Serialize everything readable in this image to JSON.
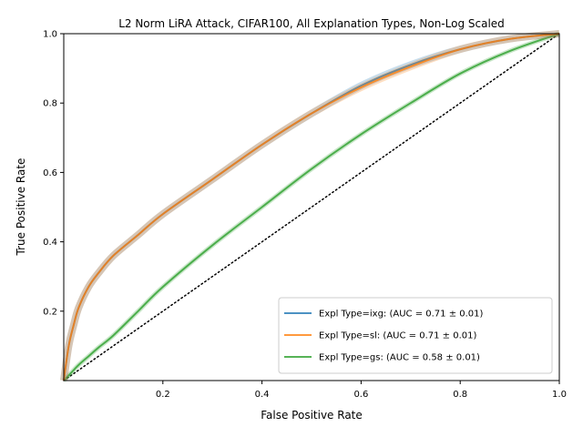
{
  "chart_data": {
    "type": "line",
    "title": "L2 Norm LiRA Attack, CIFAR100, All Explanation Types, Non-Log Scaled",
    "xlabel": "False Positive Rate",
    "ylabel": "True Positive Rate",
    "xlim": [
      0,
      1
    ],
    "ylim": [
      0,
      1
    ],
    "x_ticks": [
      0.2,
      0.4,
      0.6,
      0.8,
      1.0
    ],
    "x_tick_labels": [
      "0.2",
      "0.4",
      "0.6",
      "0.8",
      "1.0"
    ],
    "y_ticks": [
      0.2,
      0.4,
      0.6,
      0.8,
      1.0
    ],
    "y_tick_labels": [
      "0.2",
      "0.4",
      "0.6",
      "0.8",
      "1.0"
    ],
    "grid": false,
    "legend_position": "bottom-right",
    "x": [
      0,
      0.01,
      0.02,
      0.03,
      0.05,
      0.07,
      0.1,
      0.15,
      0.2,
      0.3,
      0.4,
      0.5,
      0.6,
      0.7,
      0.8,
      0.9,
      1.0
    ],
    "series": [
      {
        "name": "Expl Type=ixg: (AUC = 0.71 ± 0.01)",
        "color": "#1f77b4",
        "values": [
          0,
          0.1,
          0.16,
          0.21,
          0.27,
          0.31,
          0.36,
          0.42,
          0.48,
          0.58,
          0.68,
          0.77,
          0.85,
          0.91,
          0.955,
          0.985,
          1.0
        ]
      },
      {
        "name": "Expl Type=sl: (AUC = 0.71 ± 0.01)",
        "color": "#ff7f0e",
        "values": [
          0,
          0.1,
          0.16,
          0.21,
          0.27,
          0.31,
          0.36,
          0.42,
          0.48,
          0.58,
          0.68,
          0.77,
          0.845,
          0.905,
          0.955,
          0.985,
          1.0
        ]
      },
      {
        "name": "Expl Type=gs: (AUC = 0.58 ± 0.01)",
        "color": "#2ca02c",
        "values": [
          0,
          0.015,
          0.03,
          0.045,
          0.07,
          0.095,
          0.13,
          0.2,
          0.27,
          0.39,
          0.5,
          0.61,
          0.71,
          0.8,
          0.885,
          0.95,
          1.0
        ]
      }
    ],
    "reference_line": {
      "x": [
        0,
        1
      ],
      "y": [
        0,
        1
      ],
      "style": "dotted",
      "color": "#000000"
    }
  }
}
